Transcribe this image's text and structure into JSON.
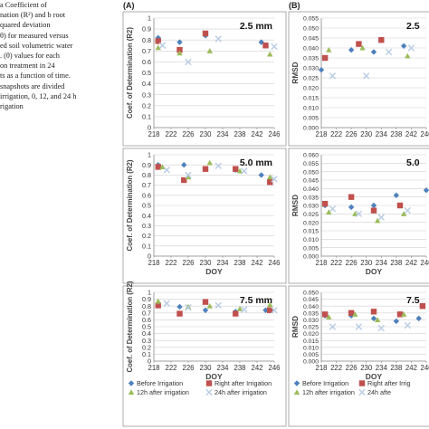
{
  "caption": {
    "lines": [
      "a Coefficient of",
      "nation (R²) and b root",
      "quared deviation",
      "θ) for measured versus",
      "ed soil volumetric water",
      ". (θ) values for each",
      "on treatment in 24",
      "ts as a function of time.",
      " snapshots are divided",
      "irrigation, 0, 12, and 24 h",
      "rigation"
    ]
  },
  "panel_labels": [
    "(A)",
    "(B)"
  ],
  "colors": {
    "before": "#4f81bd",
    "right_after": "#c0504d",
    "h12": "#9bbb59",
    "h24": "#b8cce4"
  },
  "legend": {
    "entries": [
      {
        "key": "before",
        "label": "Before Irrigation"
      },
      {
        "key": "right_after",
        "label": "Right after Irrigation"
      },
      {
        "key": "h12",
        "label": "12h after irrigation"
      },
      {
        "key": "h24",
        "label": "24h after irrigation"
      }
    ],
    "right_entries": [
      {
        "key": "before",
        "label": "Before Irrigation"
      },
      {
        "key": "right_after",
        "label": "Right after Irrig"
      },
      {
        "key": "h12",
        "label": "12h after irrigation"
      },
      {
        "key": "h24",
        "label": "24h afte"
      }
    ]
  },
  "chart_data": [
    {
      "type": "scatter",
      "panel": "A",
      "depth_label": "2.5 mm",
      "ylabel": "Coef. of Determination (R2)",
      "xlabel": "",
      "xlim": [
        218,
        246
      ],
      "xticks": [
        "218",
        "222",
        "226",
        "230",
        "234",
        "238",
        "242",
        "246"
      ],
      "ylim": [
        0,
        1
      ],
      "yticks": [
        "0",
        "0.1",
        "0.2",
        "0.3",
        "0.4",
        "0.5",
        "0.6",
        "0.7",
        "0.8",
        "0.9",
        "1"
      ],
      "grid": true,
      "series": [
        {
          "key": "before",
          "marker": "diamond",
          "points": [
            [
              219,
              0.82
            ],
            [
              224,
              0.78
            ],
            [
              230,
              0.84
            ],
            [
              243,
              0.78
            ]
          ]
        },
        {
          "key": "right_after",
          "marker": "square",
          "points": [
            [
              219,
              0.79
            ],
            [
              224,
              0.71
            ],
            [
              230,
              0.86
            ],
            [
              244,
              0.75
            ]
          ]
        },
        {
          "key": "h12",
          "marker": "triangle",
          "points": [
            [
              219,
              0.73
            ],
            [
              224,
              0.68
            ],
            [
              231,
              0.7
            ],
            [
              245,
              0.67
            ]
          ]
        },
        {
          "key": "h24",
          "marker": "x",
          "points": [
            [
              220,
              0.75
            ],
            [
              226,
              0.6
            ],
            [
              233,
              0.81
            ],
            [
              246,
              0.74
            ]
          ]
        }
      ]
    },
    {
      "type": "scatter",
      "panel": "A",
      "depth_label": "5.0 mm",
      "ylabel": "Coef. of Determination (R2)",
      "xlabel": "DOY",
      "xlim": [
        218,
        246
      ],
      "xticks": [
        "218",
        "222",
        "226",
        "230",
        "234",
        "238",
        "242",
        "246"
      ],
      "ylim": [
        0,
        1
      ],
      "yticks": [
        "0",
        "0.1",
        "0.2",
        "0.3",
        "0.4",
        "0.5",
        "0.6",
        "0.7",
        "0.8",
        "0.9",
        "1"
      ],
      "grid": true,
      "series": [
        {
          "key": "before",
          "marker": "diamond",
          "points": [
            [
              219,
              0.9
            ],
            [
              225,
              0.9
            ],
            [
              230,
              0.86
            ],
            [
              237,
              0.85
            ],
            [
              243,
              0.8
            ]
          ]
        },
        {
          "key": "right_after",
          "marker": "square",
          "points": [
            [
              219,
              0.88
            ],
            [
              225,
              0.75
            ],
            [
              230,
              0.86
            ],
            [
              237,
              0.86
            ],
            [
              245,
              0.73
            ]
          ]
        },
        {
          "key": "h12",
          "marker": "triangle",
          "points": [
            [
              220,
              0.88
            ],
            [
              226,
              0.78
            ],
            [
              231,
              0.92
            ],
            [
              238,
              0.84
            ],
            [
              245,
              0.78
            ]
          ]
        },
        {
          "key": "h24",
          "marker": "x",
          "points": [
            [
              221,
              0.85
            ],
            [
              226,
              0.8
            ],
            [
              233,
              0.89
            ],
            [
              239,
              0.84
            ],
            [
              246,
              0.76
            ]
          ]
        }
      ]
    },
    {
      "type": "scatter",
      "panel": "A",
      "depth_label": "7.5 mm",
      "ylabel": "Coef. of Determination (R2)",
      "xlabel": "DOY",
      "xlim": [
        218,
        246
      ],
      "xticks": [
        "218",
        "222",
        "226",
        "230",
        "234",
        "238",
        "242",
        "246"
      ],
      "ylim": [
        0,
        1
      ],
      "yticks": [
        "0",
        "0.1",
        "0.2",
        "0.3",
        "0.4",
        "0.5",
        "0.6",
        "0.7",
        "0.8",
        "0.9",
        "1"
      ],
      "grid": true,
      "series": [
        {
          "key": "before",
          "marker": "diamond",
          "points": [
            [
              219,
              0.84
            ],
            [
              224,
              0.79
            ],
            [
              230,
              0.74
            ],
            [
              237,
              0.72
            ],
            [
              244,
              0.74
            ]
          ]
        },
        {
          "key": "right_after",
          "marker": "square",
          "points": [
            [
              219,
              0.81
            ],
            [
              224,
              0.69
            ],
            [
              230,
              0.86
            ],
            [
              237,
              0.69
            ],
            [
              245,
              0.74
            ]
          ]
        },
        {
          "key": "h12",
          "marker": "triangle",
          "points": [
            [
              219,
              0.87
            ],
            [
              226,
              0.79
            ],
            [
              231,
              0.8
            ],
            [
              238,
              0.76
            ],
            [
              245,
              0.82
            ]
          ]
        },
        {
          "key": "h24",
          "marker": "x",
          "points": [
            [
              221,
              0.84
            ],
            [
              226,
              0.78
            ],
            [
              233,
              0.81
            ],
            [
              239,
              0.75
            ],
            [
              246,
              0.74
            ]
          ]
        }
      ]
    },
    {
      "type": "scatter",
      "panel": "B",
      "depth_label": "2.5",
      "ylabel": "RMSD",
      "xlabel": "",
      "xlim": [
        218,
        246
      ],
      "xticks": [
        "218",
        "222",
        "226",
        "230",
        "234",
        "238",
        "242",
        "246"
      ],
      "ylim": [
        0,
        0.055
      ],
      "yticks": [
        "0.000",
        "0.005",
        "0.010",
        "0.015",
        "0.020",
        "0.025",
        "0.030",
        "0.035",
        "0.040",
        "0.045",
        "0.050",
        "0.055"
      ],
      "grid": true,
      "series": [
        {
          "key": "before",
          "marker": "diamond",
          "points": [
            [
              218,
              0.029
            ],
            [
              226,
              0.039
            ],
            [
              232,
              0.038
            ],
            [
              240,
              0.041
            ]
          ]
        },
        {
          "key": "right_after",
          "marker": "square",
          "points": [
            [
              219,
              0.035
            ],
            [
              228,
              0.042
            ],
            [
              234,
              0.044
            ]
          ]
        },
        {
          "key": "h12",
          "marker": "triangle",
          "points": [
            [
              220,
              0.039
            ],
            [
              229,
              0.04
            ],
            [
              241,
              0.036
            ]
          ]
        },
        {
          "key": "h24",
          "marker": "x",
          "points": [
            [
              221,
              0.026
            ],
            [
              230,
              0.026
            ],
            [
              236,
              0.038
            ],
            [
              242,
              0.04
            ]
          ]
        }
      ]
    },
    {
      "type": "scatter",
      "panel": "B",
      "depth_label": "5.0",
      "ylabel": "RMSD",
      "xlabel": "DOY",
      "xlim": [
        218,
        246
      ],
      "xticks": [
        "218",
        "222",
        "226",
        "230",
        "234",
        "238",
        "242",
        "246"
      ],
      "ylim": [
        0,
        0.06
      ],
      "yticks": [
        "0.000",
        "0.005",
        "0.010",
        "0.015",
        "0.020",
        "0.025",
        "0.030",
        "0.035",
        "0.040",
        "0.045",
        "0.050",
        "0.055",
        "0.060"
      ],
      "grid": true,
      "series": [
        {
          "key": "before",
          "marker": "diamond",
          "points": [
            [
              219,
              0.03
            ],
            [
              226,
              0.029
            ],
            [
              232,
              0.03
            ],
            [
              238,
              0.036
            ],
            [
              246,
              0.039
            ]
          ]
        },
        {
          "key": "right_after",
          "marker": "square",
          "points": [
            [
              219,
              0.031
            ],
            [
              226,
              0.035
            ],
            [
              232,
              0.027
            ],
            [
              239,
              0.03
            ]
          ]
        },
        {
          "key": "h12",
          "marker": "triangle",
          "points": [
            [
              220,
              0.026
            ],
            [
              227,
              0.025
            ],
            [
              233,
              0.021
            ],
            [
              240,
              0.025
            ]
          ]
        },
        {
          "key": "h24",
          "marker": "x",
          "points": [
            [
              221,
              0.028
            ],
            [
              228,
              0.025
            ],
            [
              234,
              0.023
            ],
            [
              241,
              0.027
            ]
          ]
        }
      ]
    },
    {
      "type": "scatter",
      "panel": "B",
      "depth_label": "7.5",
      "ylabel": "RMSD",
      "xlabel": "DOY",
      "xlim": [
        218,
        246
      ],
      "xticks": [
        "218",
        "222",
        "226",
        "230",
        "234",
        "238",
        "242",
        "246"
      ],
      "ylim": [
        0,
        0.05
      ],
      "yticks": [
        "0.000",
        "0.005",
        "0.010",
        "0.015",
        "0.020",
        "0.025",
        "0.030",
        "0.035",
        "0.040",
        "0.045",
        "0.050"
      ],
      "grid": true,
      "series": [
        {
          "key": "before",
          "marker": "diamond",
          "points": [
            [
              219,
              0.033
            ],
            [
              226,
              0.033
            ],
            [
              232,
              0.031
            ],
            [
              238,
              0.029
            ],
            [
              244,
              0.031
            ]
          ]
        },
        {
          "key": "right_after",
          "marker": "square",
          "points": [
            [
              219,
              0.034
            ],
            [
              226,
              0.035
            ],
            [
              232,
              0.036
            ],
            [
              239,
              0.034
            ],
            [
              245,
              0.04
            ]
          ]
        },
        {
          "key": "h12",
          "marker": "triangle",
          "points": [
            [
              220,
              0.032
            ],
            [
              227,
              0.034
            ],
            [
              233,
              0.03
            ],
            [
              240,
              0.034
            ]
          ]
        },
        {
          "key": "h24",
          "marker": "x",
          "points": [
            [
              221,
              0.025
            ],
            [
              228,
              0.025
            ],
            [
              234,
              0.024
            ],
            [
              241,
              0.026
            ]
          ]
        }
      ]
    }
  ]
}
